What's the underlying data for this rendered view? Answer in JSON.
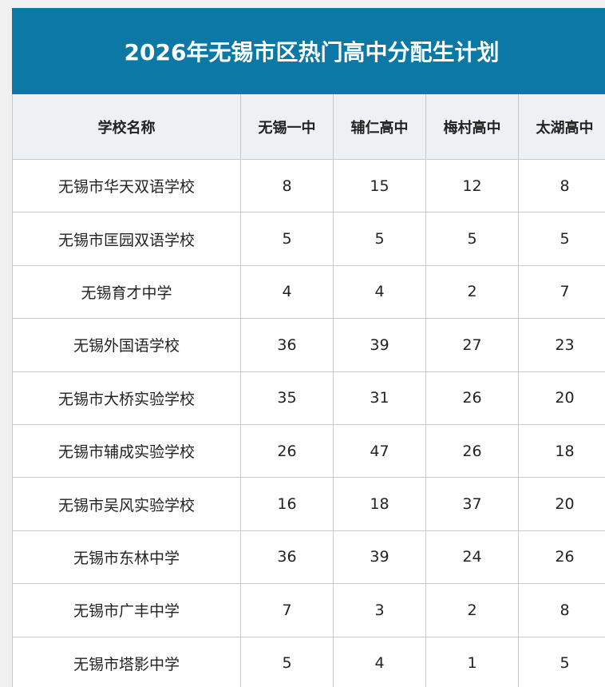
{
  "title": "2026年无锡市区热门高中分配生计划",
  "table": {
    "header": [
      "学校名称",
      "无锡一中",
      "辅仁高中",
      "梅村高中",
      "太湖高中"
    ],
    "rows": [
      [
        "无锡市华天双语学校",
        8,
        15,
        12,
        8
      ],
      [
        "无锡市匡园双语学校",
        5,
        5,
        5,
        5
      ],
      [
        "无锡育才中学",
        4,
        4,
        2,
        7
      ],
      [
        "无锡外国语学校",
        36,
        39,
        27,
        23
      ],
      [
        "无锡市大桥实验学校",
        35,
        31,
        26,
        20
      ],
      [
        "无锡市辅成实验学校",
        26,
        47,
        26,
        18
      ],
      [
        "无锡市吴风实验学校",
        16,
        18,
        37,
        20
      ],
      [
        "无锡市东林中学",
        36,
        39,
        24,
        26
      ],
      [
        "无锡市广丰中学",
        7,
        3,
        2,
        8
      ],
      [
        "无锡市塔影中学",
        5,
        4,
        1,
        5
      ]
    ]
  }
}
